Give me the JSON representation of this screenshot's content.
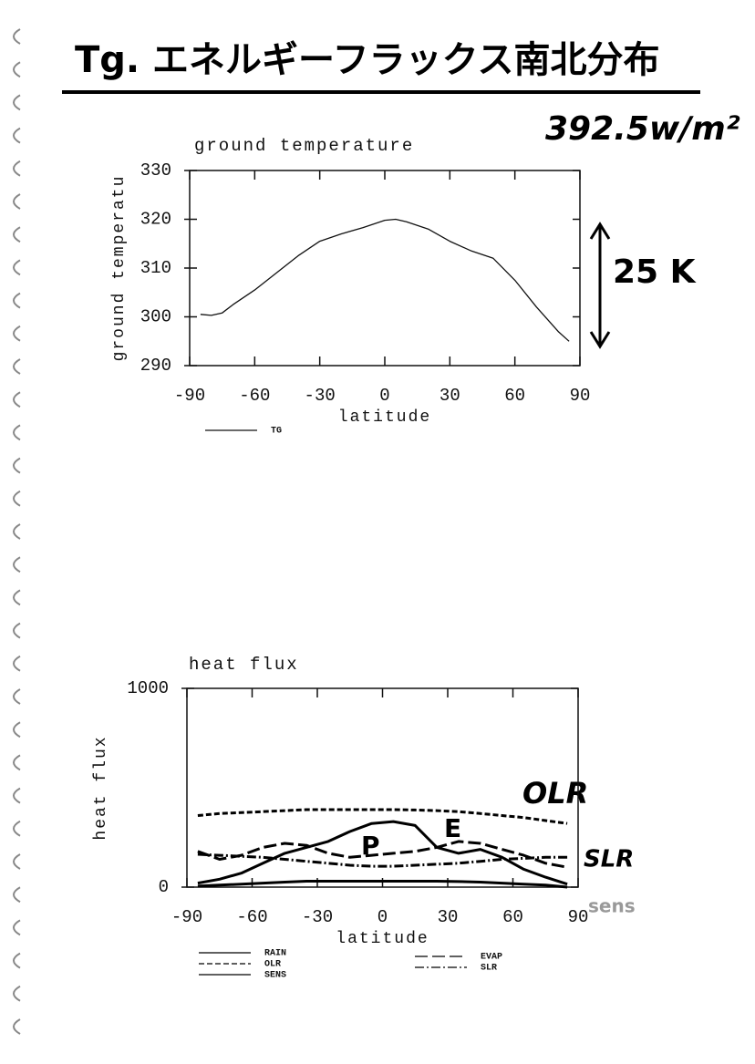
{
  "heading": "Tg. エネルギーフラックス南北分布",
  "annotation": "392.5w/m²",
  "chart_data": [
    {
      "type": "line",
      "title": "ground temperature",
      "x_label": "latitude",
      "y_label": "ground temperatu",
      "xlim": [
        -90,
        90
      ],
      "xticks": [
        -90,
        -60,
        -30,
        0,
        30,
        60,
        90
      ],
      "ylim": [
        290,
        330
      ],
      "yticks": [
        290,
        300,
        310,
        320,
        330
      ],
      "x": [
        -85,
        -80,
        -75,
        -70,
        -60,
        -50,
        -40,
        -30,
        -20,
        -10,
        0,
        5,
        10,
        20,
        30,
        40,
        50,
        60,
        70,
        80,
        85
      ],
      "series": [
        {
          "name": "TG",
          "color": "#111111",
          "dash": "solid",
          "values": [
            300.5,
            300.3,
            300.8,
            302.5,
            305.5,
            309,
            312.5,
            315.5,
            317,
            318.3,
            319.8,
            320,
            319.5,
            318,
            315.5,
            313.5,
            312,
            307.5,
            302,
            297,
            295
          ]
        }
      ],
      "annotations": [
        "25 K"
      ]
    },
    {
      "type": "line",
      "title": "heat flux",
      "x_label": "latitude",
      "y_label": "heat flux",
      "xlim": [
        -90,
        90
      ],
      "xticks": [
        -90,
        -60,
        -30,
        0,
        30,
        60,
        90
      ],
      "ylim": [
        0,
        1000
      ],
      "yticks": [
        0,
        1000
      ],
      "x": [
        -85,
        -75,
        -65,
        -55,
        -45,
        -35,
        -25,
        -15,
        -5,
        5,
        15,
        25,
        35,
        45,
        55,
        65,
        75,
        85
      ],
      "series": [
        {
          "name": "RAIN",
          "color": "#000000",
          "dash": "solid",
          "values": [
            20,
            40,
            70,
            120,
            170,
            200,
            230,
            280,
            320,
            330,
            310,
            200,
            170,
            190,
            150,
            90,
            50,
            15
          ]
        },
        {
          "name": "OLR",
          "color": "#000000",
          "dash": "dashed",
          "values": [
            360,
            370,
            375,
            380,
            385,
            390,
            390,
            390,
            390,
            390,
            388,
            385,
            380,
            370,
            360,
            350,
            335,
            320
          ]
        },
        {
          "name": "SENS",
          "color": "#000000",
          "dash": "solid",
          "values": [
            5,
            10,
            15,
            20,
            25,
            30,
            30,
            30,
            30,
            30,
            30,
            30,
            28,
            25,
            20,
            15,
            10,
            0
          ]
        },
        {
          "name": "EVAP",
          "color": "#000000",
          "dash": "longdash",
          "values": [
            180,
            140,
            160,
            200,
            220,
            210,
            170,
            150,
            160,
            170,
            180,
            200,
            230,
            220,
            190,
            160,
            120,
            100
          ]
        },
        {
          "name": "SLR",
          "color": "#000000",
          "dash": "dashdot",
          "values": [
            165,
            160,
            155,
            150,
            140,
            130,
            120,
            110,
            105,
            105,
            110,
            115,
            120,
            130,
            140,
            145,
            150,
            150
          ]
        }
      ],
      "annotations": [
        "OLR",
        "P",
        "E",
        "SLR",
        "sens"
      ]
    }
  ]
}
